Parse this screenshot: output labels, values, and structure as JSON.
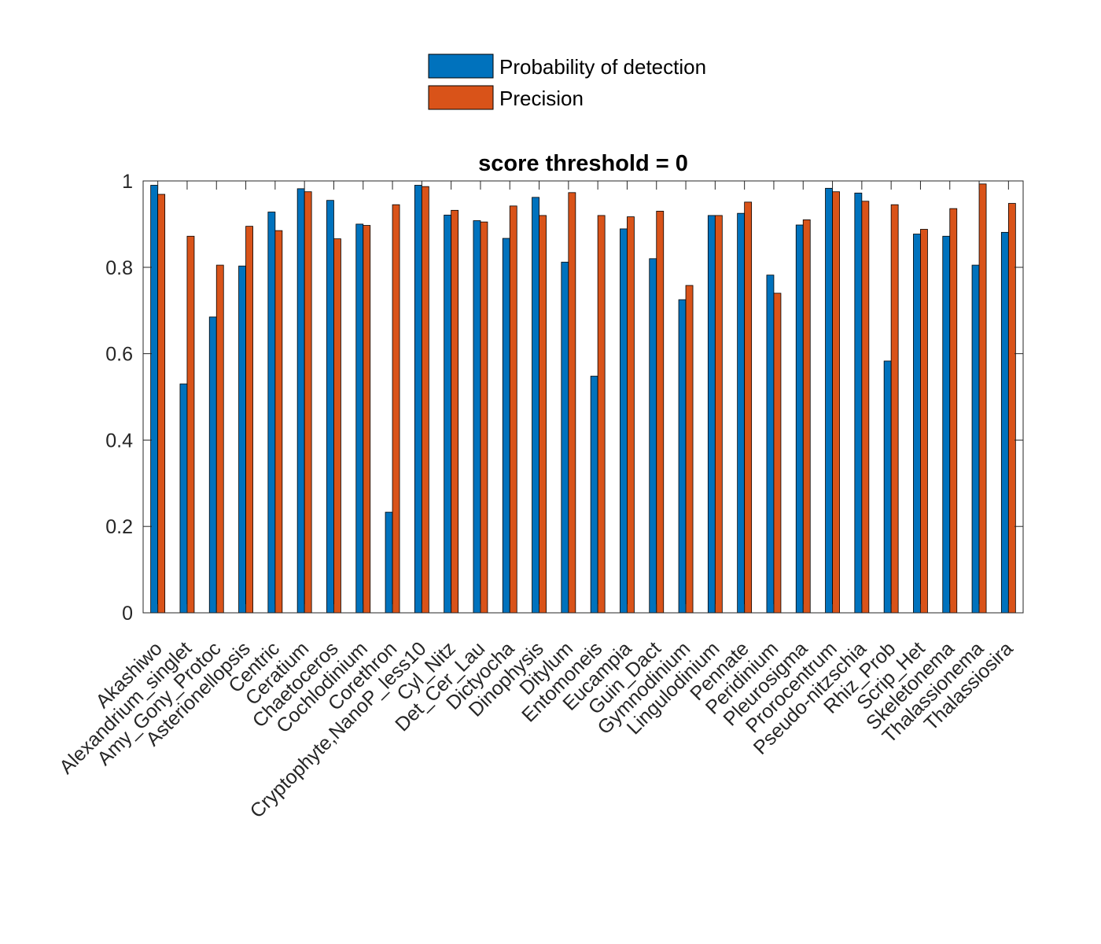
{
  "chart_data": {
    "type": "bar",
    "title": "score threshold = 0",
    "xlabel": "",
    "ylabel": "",
    "ylim": [
      0,
      1
    ],
    "yticks": [
      0,
      0.2,
      0.4,
      0.6,
      0.8,
      1
    ],
    "ytick_labels": [
      "0",
      "0.2",
      "0.4",
      "0.6",
      "0.8",
      "1"
    ],
    "grid": false,
    "legend_position": "top-center",
    "categories": [
      "Akashiwo",
      "Alexandrium_singlet",
      "Amy_Gony_Protoc",
      "Asterionellopsis",
      "Centric",
      "Ceratium",
      "Chaetoceros",
      "Cochlodinium",
      "Corethron",
      "Cryptophyte,NanoP_less10",
      "Cyl_Nitz",
      "Det_Cer_Lau",
      "Dictyocha",
      "Dinophysis",
      "Ditylum",
      "Entomoneis",
      "Eucampia",
      "Guin_Dact",
      "Gymnodinium",
      "Lingulodinium",
      "Pennate",
      "Peridinium",
      "Pleurosigma",
      "Prorocentrum",
      "Pseudo-nitzschia",
      "Rhiz_Prob",
      "Scrip_Het",
      "Skeletonema",
      "Thalassionema",
      "Thalassiosira"
    ],
    "series": [
      {
        "name": "Probability of detection",
        "color": "#0072BD",
        "values": [
          0.99,
          0.53,
          0.685,
          0.803,
          0.928,
          0.982,
          0.955,
          0.9,
          0.233,
          0.99,
          0.921,
          0.908,
          0.867,
          0.962,
          0.812,
          0.548,
          0.889,
          0.82,
          0.725,
          0.92,
          0.925,
          0.782,
          0.898,
          0.983,
          0.972,
          0.583,
          0.877,
          0.872,
          0.805,
          0.881
        ]
      },
      {
        "name": "Precision",
        "color": "#D95319",
        "values": [
          0.969,
          0.872,
          0.805,
          0.895,
          0.885,
          0.975,
          0.866,
          0.897,
          0.945,
          0.987,
          0.932,
          0.905,
          0.942,
          0.92,
          0.973,
          0.92,
          0.917,
          0.93,
          0.758,
          0.92,
          0.951,
          0.74,
          0.91,
          0.975,
          0.953,
          0.945,
          0.888,
          0.936,
          0.993,
          0.948
        ]
      }
    ]
  }
}
